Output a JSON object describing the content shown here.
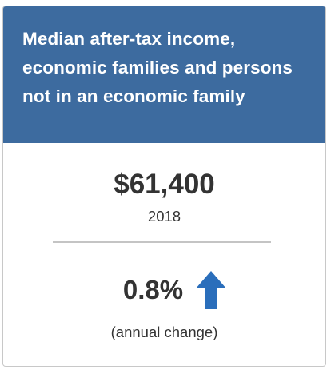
{
  "card": {
    "title": "Median after-tax income, economic families and persons not in an economic family",
    "header_color": "#3d6b9f",
    "value": "$61,400",
    "year": "2018",
    "change": {
      "value": "0.8%",
      "direction_icon": "arrow-up-icon",
      "icon_color": "#2a6ebb",
      "label": "(annual change)"
    }
  }
}
